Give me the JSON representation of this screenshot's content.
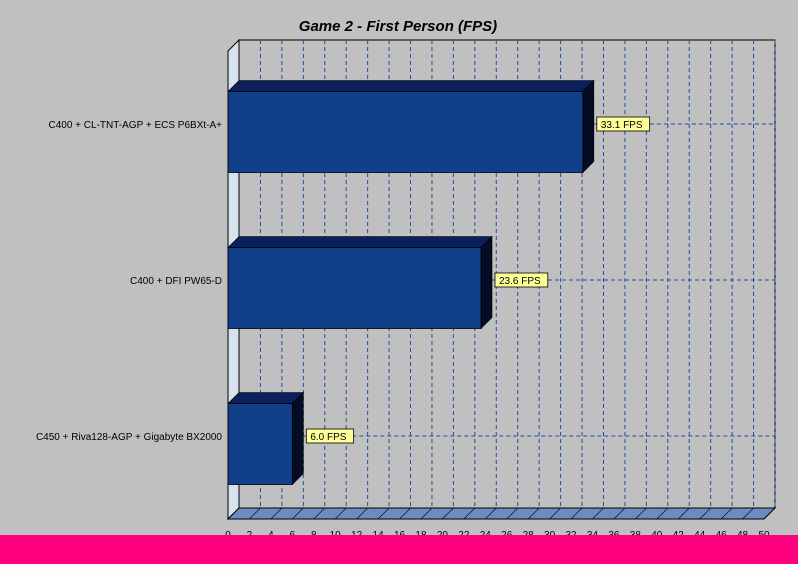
{
  "chart_data": {
    "type": "bar",
    "orientation": "horizontal",
    "title": "Game 2 - First Person (FPS)",
    "categories": [
      "C400 + CL-TNT-AGP + ECS P6BXt-A+",
      "C400 + DFI PW65-D",
      "C450 + Riva128-AGP + Gigabyte BX2000"
    ],
    "values": [
      33.1,
      23.6,
      6.0
    ],
    "data_labels": [
      "33.1 FPS",
      "23.6 FPS",
      "6.0 FPS"
    ],
    "xlim": [
      0,
      50
    ],
    "x_ticks": [
      0,
      2,
      4,
      6,
      8,
      10,
      12,
      14,
      16,
      18,
      20,
      22,
      24,
      26,
      28,
      30,
      32,
      34,
      36,
      38,
      40,
      42,
      44,
      46,
      48,
      50
    ],
    "xlabel": "",
    "ylabel": "",
    "grid": true,
    "style": "3d"
  },
  "colors": {
    "background": "#c0c0c0",
    "plot_back_wall": "#c0c0c0",
    "gridline": "#1f4fa0",
    "bar_front": "#123f8a",
    "bar_top": "#0b1f5c",
    "bar_side": "#050d26",
    "data_label_fill": "#ffff99",
    "floor": "#6b8cc0",
    "left_wall": "#d7e2ee",
    "bottom_strip": "#ff0080"
  }
}
